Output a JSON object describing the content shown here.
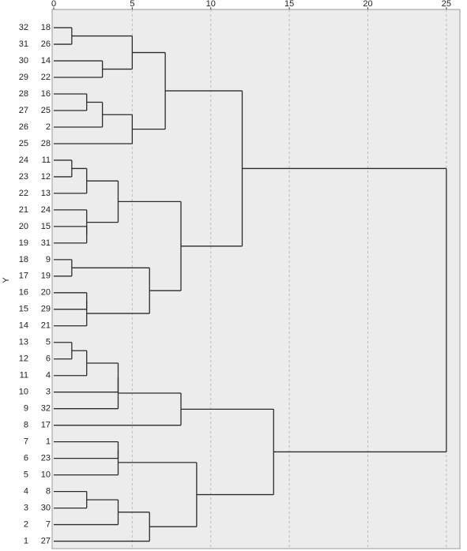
{
  "chart_data": {
    "type": "dendrogram",
    "y_label": "Y",
    "xlim": [
      0,
      25.86
    ],
    "xticks": [
      0,
      5,
      10,
      15,
      20,
      25
    ],
    "ylim": [
      0.55,
      33.1
    ],
    "grid": true,
    "line_color": "#2b2b2b",
    "background": "#ececec",
    "tree": {
      "height": 25,
      "children": [
        {
          "height": 12,
          "children": [
            {
              "height": 7.1,
              "children": [
                {
                  "height": 5,
                  "children": [
                    {
                      "height": 1.15,
                      "children": [
                        {
                          "row": 32,
                          "label": 18
                        },
                        {
                          "row": 31,
                          "label": 26
                        }
                      ]
                    },
                    {
                      "height": 3.1,
                      "children": [
                        {
                          "row": 30,
                          "label": 14
                        },
                        {
                          "row": 29,
                          "label": 22
                        }
                      ]
                    }
                  ]
                },
                {
                  "height": 5,
                  "children": [
                    {
                      "height": 3.1,
                      "children": [
                        {
                          "height": 2.1,
                          "children": [
                            {
                              "row": 28,
                              "label": 16
                            },
                            {
                              "row": 27,
                              "label": 25
                            }
                          ]
                        },
                        {
                          "row": 26,
                          "label": 2
                        }
                      ]
                    },
                    {
                      "row": 25,
                      "label": 28
                    }
                  ]
                }
              ]
            },
            {
              "height": 8.1,
              "children": [
                {
                  "height": 4.1,
                  "children": [
                    {
                      "height": 2.1,
                      "children": [
                        {
                          "height": 1.15,
                          "children": [
                            {
                              "row": 24,
                              "label": 11
                            },
                            {
                              "row": 23,
                              "label": 12
                            }
                          ]
                        },
                        {
                          "row": 22,
                          "label": 13
                        }
                      ]
                    },
                    {
                      "height": 2.1,
                      "children": [
                        {
                          "row": 21,
                          "label": 24
                        },
                        {
                          "height": 2.1,
                          "children": [
                            {
                              "row": 20,
                              "label": 15
                            },
                            {
                              "row": 19,
                              "label": 31
                            }
                          ]
                        }
                      ]
                    }
                  ]
                },
                {
                  "height": 6.1,
                  "children": [
                    {
                      "height": 1.15,
                      "children": [
                        {
                          "row": 18,
                          "label": 9
                        },
                        {
                          "row": 17,
                          "label": 19
                        }
                      ]
                    },
                    {
                      "height": 2.1,
                      "children": [
                        {
                          "height": 2.1,
                          "children": [
                            {
                              "row": 16,
                              "label": 20
                            },
                            {
                              "row": 15,
                              "label": 29
                            }
                          ]
                        },
                        {
                          "row": 14,
                          "label": 21
                        }
                      ]
                    }
                  ]
                }
              ]
            }
          ]
        },
        {
          "height": 14,
          "children": [
            {
              "height": 8.1,
              "children": [
                {
                  "height": 4.1,
                  "children": [
                    {
                      "height": 4.1,
                      "children": [
                        {
                          "height": 2.1,
                          "children": [
                            {
                              "height": 1.15,
                              "children": [
                                {
                                  "row": 13,
                                  "label": 5
                                },
                                {
                                  "row": 12,
                                  "label": 6
                                }
                              ]
                            },
                            {
                              "row": 11,
                              "label": 4
                            }
                          ]
                        },
                        {
                          "row": 10,
                          "label": 3
                        }
                      ]
                    },
                    {
                      "row": 9,
                      "label": 32
                    }
                  ]
                },
                {
                  "row": 8,
                  "label": 17
                }
              ]
            },
            {
              "height": 9.1,
              "children": [
                {
                  "height": 4.1,
                  "children": [
                    {
                      "height": 4.1,
                      "children": [
                        {
                          "row": 7,
                          "label": 1
                        },
                        {
                          "row": 6,
                          "label": 23
                        }
                      ]
                    },
                    {
                      "row": 5,
                      "label": 10
                    }
                  ]
                },
                {
                  "height": 6.1,
                  "children": [
                    {
                      "height": 4.1,
                      "children": [
                        {
                          "height": 2.1,
                          "children": [
                            {
                              "row": 4,
                              "label": 8
                            },
                            {
                              "row": 3,
                              "label": 30
                            }
                          ]
                        },
                        {
                          "row": 2,
                          "label": 7
                        }
                      ]
                    },
                    {
                      "row": 1,
                      "label": 27
                    }
                  ]
                }
              ]
            }
          ]
        }
      ]
    }
  }
}
